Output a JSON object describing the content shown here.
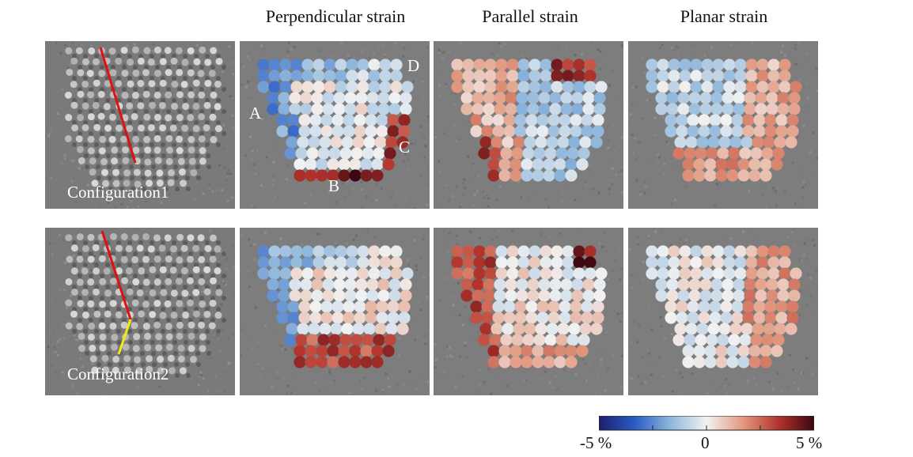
{
  "column_titles": [
    "Perpendicular strain",
    "Parallel strain",
    "Planar strain"
  ],
  "rows": [
    {
      "caption": "Configuration1"
    },
    {
      "caption": "Configuration2"
    }
  ],
  "region_labels": [
    "A",
    "B",
    "C",
    "D"
  ],
  "colorbar": {
    "min_label": "-5 %",
    "mid_label": "0",
    "max_label": "5 %",
    "range": [
      -5,
      5
    ],
    "colormap": [
      "#1a1f6e",
      "#2a5cc4",
      "#8fb7dc",
      "#f2f2f2",
      "#e29a80",
      "#b3342c",
      "#3a0710"
    ]
  },
  "colors": {
    "panel_background": "#7d7d7d",
    "trace_upper": "#e01010",
    "trace_lower": "#f2e81a",
    "label_color": "#ffffff"
  }
}
